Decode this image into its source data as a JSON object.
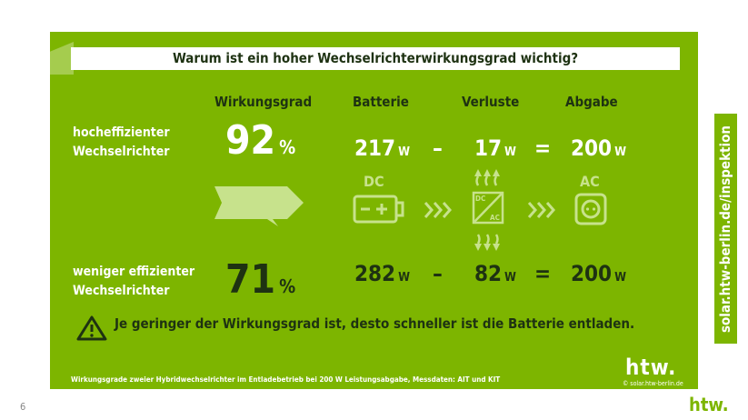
{
  "title": "Warum ist ein hoher Wechselrichterwirkungsgrad wichtig?",
  "headers": {
    "efficiency": "Wirkungsgrad",
    "battery": "Batterie",
    "losses": "Verluste",
    "output": "Abgabe"
  },
  "rows": [
    {
      "label1": "hocheffizienter",
      "label2": "Wechselrichter",
      "efficiency": "92",
      "battery": "217",
      "losses": "17",
      "output": "200"
    },
    {
      "label1": "weniger effizienter",
      "label2": "Wechselrichter",
      "efficiency": "71",
      "battery": "282",
      "losses": "82",
      "output": "200"
    }
  ],
  "units": {
    "percent": "%",
    "watt": "W"
  },
  "ops": {
    "minus": "–",
    "equals": "="
  },
  "icons": {
    "dc": "DC",
    "ac": "AC",
    "inv_dc": "DC",
    "inv_ac": "AC"
  },
  "warning": "Je geringer der Wirkungsgrad ist, desto schneller ist die Batterie entladen.",
  "footnote": "Wirkungsgrade zweier Hybridwechselrichter im Entladebetrieb bei 200 W Leistungsabgabe, Messdaten: AIT und KIT",
  "logo": "htw.",
  "logo_url": "© solar.htw-berlin.de",
  "side_url": "solar.htw-berlin.de/inspektion",
  "page_number": "6",
  "colors": {
    "green": "#7db500",
    "dark": "#1e3212",
    "light": "#c7e28c"
  }
}
